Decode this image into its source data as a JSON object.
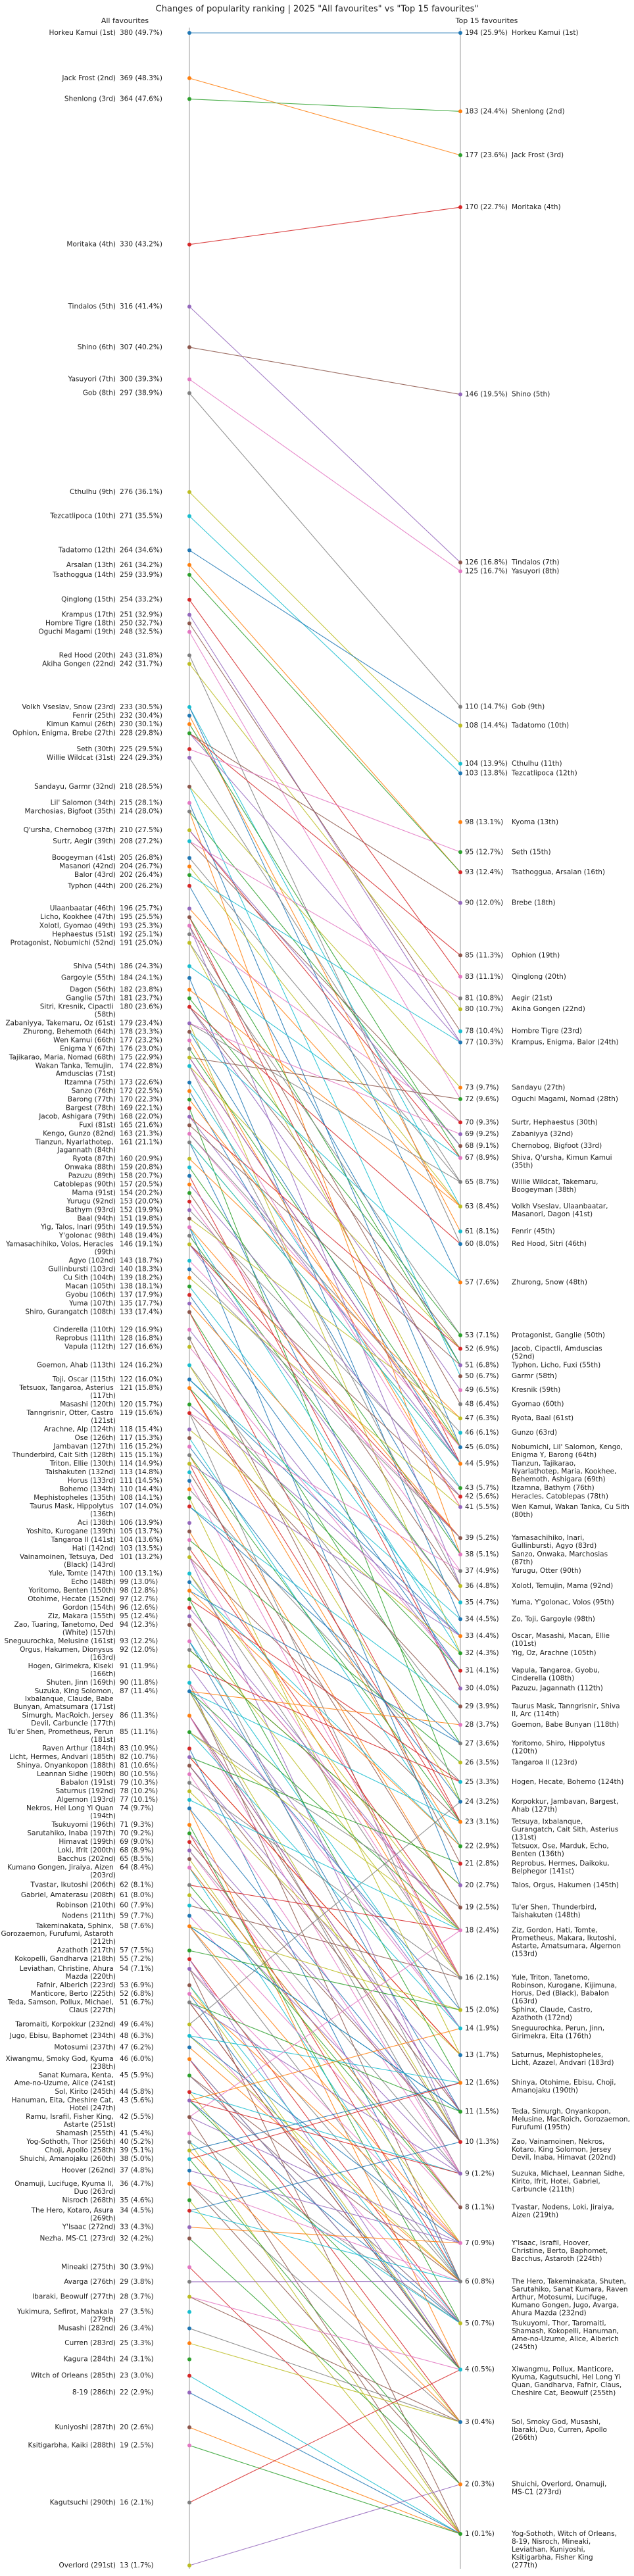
{
  "chart_data": {
    "type": "slope",
    "title": "Changes of popularity ranking | 2025 \"All favourites\" vs \"Top 15 favourites\"",
    "scale": "sqrt",
    "colors": [
      "#1f77b4",
      "#ff7f0e",
      "#2ca02c",
      "#d62728",
      "#9467bd",
      "#8c564b",
      "#e377c2",
      "#7f7f7f",
      "#bcbd22",
      "#17becf"
    ],
    "left": {
      "title": "All favourites",
      "ylim": [
        13,
        380
      ],
      "labels": [
        "Horkeu Kamui (1st)",
        "Jack Frost (2nd)",
        "Shenlong (3rd)",
        "Moritaka (4th)",
        "Tindalos (5th)",
        "Shino (6th)",
        "Yasuyori (7th)",
        "Gob (8th)",
        "Cthulhu (9th)",
        "Tezcatlipoca (10th)",
        "Tadatomo (12th)",
        "Arsalan (13th)",
        "Tsathoggua (14th)",
        "Qinglong (15th)",
        "Krampus (17th)",
        "Hombre Tigre (18th)",
        "Oguchi Magami (19th)",
        "Red Hood (20th)",
        "Akiha Gongen (22nd)",
        "Volkh Vseslav, Snow (23rd)",
        "Fenrir (25th)",
        "Kimun Kamui (26th)",
        "Ophion, Enigma, Brebe (27th)",
        "Seth (30th)",
        "Willie Wildcat (31st)",
        "Sandayu, Garmr (32nd)",
        "Lil' Salomon (34th)",
        "Marchosias, Bigfoot (35th)",
        "Q'ursha, Chernobog (37th)",
        "Surtr, Aegir (39th)",
        "Boogeyman (41st)",
        "Masanori (42nd)",
        "Balor (43rd)",
        "Typhon (44th)",
        "Ulaanbaatar (46th)",
        "Licho, Kookhee (47th)",
        "Xolotl, Gyomao (49th)",
        "Hephaestus (51st)",
        "Protagonist, Nobumichi (52nd)",
        "Shiva (54th)",
        "Gargoyle (55th)",
        "Dagon (56th)",
        "Ganglie (57th)",
        "Sitri, Kresnik, Cipactli (58th)",
        "Zabaniyya, Takemaru, Oz (61st)",
        "Zhurong, Behemoth (64th)",
        "Wen Kamui (66th)",
        "Enigma Y (67th)",
        "Tajikarao, Maria, Nomad (68th)",
        "Wakan Tanka, Temujin, Amduscias (71st)",
        "Itzamna (75th)",
        "Sanzo (76th)",
        "Barong (77th)",
        "Bargest (78th)",
        "Jacob, Ashigara (79th)",
        "Fuxi (81st)",
        "Kengo, Gunzo (82nd)",
        "Tianzun, Nyarlathotep, Jagannath (84th)",
        "Ryota (87th)",
        "Onwaka (88th)",
        "Pazuzu (89th)",
        "Catoblepas (90th)",
        "Mama (91st)",
        "Yurugu (92nd)",
        "Bathym (93rd)",
        "Baal (94th)",
        "Yig, Talos, Inari (95th)",
        "Y'golonac (98th)",
        "Yamasachihiko, Volos, Heracles (99th)",
        "Agyo (102nd)",
        "Gullinbursti (103rd)",
        "Cu Sith (104th)",
        "Macan (105th)",
        "Gyobu (106th)",
        "Yuma (107th)",
        "Shiro, Gurangatch (108th)",
        "Cinderella (110th)",
        "Reprobus (111th)",
        "Vapula (112th)",
        "Goemon, Ahab (113th)",
        "Toji, Oscar (115th)",
        "Tetsuox, Tangaroa, Asterius (117th)",
        "Masashi (120th)",
        "Tanngrisnir, Otter, Castro (121st)",
        "Arachne, Alp (124th)",
        "Ose (126th)",
        "Jambavan (127th)",
        "Thunderbird, Cait Sith (128th)",
        "Triton, Ellie (130th)",
        "Taishakuten (132nd)",
        "Horus (133rd)",
        "Bohemo (134th)",
        "Mephistopheles (135th)",
        "Taurus Mask, Hippolytus (136th)",
        "Aci (138th)",
        "Yoshito, Kurogane (139th)",
        "Tangaroa II (141st)",
        "Hati (142nd)",
        "Vainamoinen, Tetsuya, Ded (Black) (143rd)",
        "Yule, Tomte (147th)",
        "Echo (148th)",
        "Yoritomo, Benten (150th)",
        "Otohime, Hecate (152nd)",
        "Gordon (154th)",
        "Ziz, Makara (155th)",
        "Zao, Tuaring, Tanetomo, Ded (White) (157th)",
        "Sneguurochka, Melusine (161st)",
        "Orgus, Hakumen, Dionysus (163rd)",
        "Hogen, Girimekra, Kiseki (166th)",
        "Shuten, Jinn (169th)",
        "Suzuka, King Solomon, Ixbalanque, Claude, Babe Bunyan, Amatsumara (171st)",
        "Simurgh, MacRoich, Jersey Devil, Carbuncle (177th)",
        "Tu'er Shen, Prometheus, Perun (181st)",
        "Raven Arthur (184th)",
        "Licht, Hermes, Andvari (185th)",
        "Shinya, Onyankopon (188th)",
        "Leannan Sidhe (190th)",
        "Babalon (191st)",
        "Saturnus (192nd)",
        "Algernon (193rd)",
        "Nekros, Hel Long Yi Quan (194th)",
        "Tsukuyomi (196th)",
        "Sarutahiko, Inaba (197th)",
        "Himavat (199th)",
        "Loki, Ifrit (200th)",
        "Bacchus (202nd)",
        "Kumano Gongen, Jiraiya, Aizen (203rd)",
        "Tvastar, Ikutoshi (206th)",
        "Gabriel, Amaterasu (208th)",
        "Robinson (210th)",
        "Nodens (211th)",
        "Takeminakata, Sphinx, Gorozaemon, Furufumi, Astaroth (212th)",
        "Azathoth (217th)",
        "Kokopelli, Gandharva (218th)",
        "Leviathan, Christine, Ahura Mazda (220th)",
        "Fafnir, Alberich (223rd)",
        "Manticore, Berto (225th)",
        "Teda, Samson, Pollux, Michael, Claus (227th)",
        "Taromaiti, Korpokkur (232nd)",
        "Jugo, Ebisu, Baphomet (234th)",
        "Motosumi (237th)",
        "Xiwangmu, Smoky God, Kyuma (238th)",
        "Sanat Kumara, Kenta, Ame-no-Uzume, Alice (241st)",
        "Sol, Kirito (245th)",
        "Hanuman, Eita, Cheshire Cat, Hotei (247th)",
        "Ramu, Israfil, Fisher King, Astarte (251st)",
        "Shamash (255th)",
        "Yog-Sothoth, Thor (256th)",
        "Choji, Apollo (258th)",
        "Shuichi, Amanojaku (260th)",
        "Hoover (262nd)",
        "Onamuji, Lucifuge, Kyuma II, Duo (263rd)",
        "Nisroch (268th)",
        "The Hero, Kotaro, Asura (269th)",
        "Y'lsaac (272nd)",
        "Nezha, MS-C1 (273rd)",
        "Mineaki (275th)",
        "Avarga (276th)",
        "Ibaraki, Beowulf (277th)",
        "Yukimura, Sefirot, Mahakala (279th)",
        "Musashi (282nd)",
        "Curren (283rd)",
        "Kagura (284th)",
        "Witch of Orleans (285th)",
        "8-19 (286th)",
        "Kuniyoshi (287th)",
        "Ksitigarbha, Kaiki (288th)",
        "Kagutsuchi (290th)",
        "Overlord (291st)"
      ],
      "values": [
        380,
        369,
        364,
        330,
        316,
        307,
        300,
        297,
        276,
        271,
        264,
        261,
        259,
        254,
        251,
        250,
        248,
        243,
        242,
        233,
        232,
        230,
        228,
        225,
        224,
        218,
        215,
        214,
        210,
        208,
        205,
        204,
        202,
        200,
        196,
        195,
        193,
        192,
        191,
        186,
        184,
        182,
        181,
        180,
        179,
        178,
        177,
        176,
        175,
        174,
        173,
        172,
        170,
        169,
        168,
        165,
        163,
        161,
        160,
        159,
        158,
        157,
        154,
        153,
        152,
        151,
        149,
        148,
        146,
        143,
        140,
        139,
        138,
        137,
        135,
        133,
        129,
        128,
        127,
        124,
        122,
        121,
        120,
        119,
        118,
        117,
        116,
        115,
        114,
        113,
        111,
        110,
        108,
        107,
        106,
        105,
        104,
        103,
        101,
        100,
        99,
        98,
        97,
        96,
        95,
        94,
        93,
        92,
        91,
        90,
        87,
        86,
        85,
        83,
        82,
        81,
        80,
        79,
        78,
        77,
        74,
        71,
        70,
        69,
        68,
        65,
        64,
        62,
        61,
        60,
        59,
        58,
        57,
        55,
        54,
        53,
        52,
        51,
        49,
        48,
        47,
        46,
        45,
        44,
        43,
        42,
        41,
        40,
        39,
        38,
        37,
        36,
        35,
        34,
        33,
        32,
        30,
        29,
        28,
        27,
        26,
        25,
        24,
        23,
        22,
        20,
        19,
        16,
        13
      ],
      "value_labels": [
        "380 (49.7%)",
        "369 (48.3%)",
        "364 (47.6%)",
        "330 (43.2%)",
        "316 (41.4%)",
        "307 (40.2%)",
        "300 (39.3%)",
        "297 (38.9%)",
        "276 (36.1%)",
        "271 (35.5%)",
        "264 (34.6%)",
        "261 (34.2%)",
        "259 (33.9%)",
        "254 (33.2%)",
        "251 (32.9%)",
        "250 (32.7%)",
        "248 (32.5%)",
        "243 (31.8%)",
        "242 (31.7%)",
        "233 (30.5%)",
        "232 (30.4%)",
        "230 (30.1%)",
        "228 (29.8%)",
        "225 (29.5%)",
        "224 (29.3%)",
        "218 (28.5%)",
        "215 (28.1%)",
        "214 (28.0%)",
        "210 (27.5%)",
        "208 (27.2%)",
        "205 (26.8%)",
        "204 (26.7%)",
        "202 (26.4%)",
        "200 (26.2%)",
        "196 (25.7%)",
        "195 (25.5%)",
        "193 (25.3%)",
        "192 (25.1%)",
        "191 (25.0%)",
        "186 (24.3%)",
        "184 (24.1%)",
        "182 (23.8%)",
        "181 (23.7%)",
        "180 (23.6%)",
        "179 (23.4%)",
        "178 (23.3%)",
        "177 (23.2%)",
        "176 (23.0%)",
        "175 (22.9%)",
        "174 (22.8%)",
        "173 (22.6%)",
        "172 (22.5%)",
        "170 (22.3%)",
        "169 (22.1%)",
        "168 (22.0%)",
        "165 (21.6%)",
        "163 (21.3%)",
        "161 (21.1%)",
        "160 (20.9%)",
        "159 (20.8%)",
        "158 (20.7%)",
        "157 (20.5%)",
        "154 (20.2%)",
        "153 (20.0%)",
        "152 (19.9%)",
        "151 (19.8%)",
        "149 (19.5%)",
        "148 (19.4%)",
        "146 (19.1%)",
        "143 (18.7%)",
        "140 (18.3%)",
        "139 (18.2%)",
        "138 (18.1%)",
        "137 (17.9%)",
        "135 (17.7%)",
        "133 (17.4%)",
        "129 (16.9%)",
        "128 (16.8%)",
        "127 (16.6%)",
        "124 (16.2%)",
        "122 (16.0%)",
        "121 (15.8%)",
        "120 (15.7%)",
        "119 (15.6%)",
        "118 (15.4%)",
        "117 (15.3%)",
        "116 (15.2%)",
        "115 (15.1%)",
        "114 (14.9%)",
        "113 (14.8%)",
        "111 (14.5%)",
        "110 (14.4%)",
        "108 (14.1%)",
        "107 (14.0%)",
        "106 (13.9%)",
        "105 (13.7%)",
        "104 (13.6%)",
        "103 (13.5%)",
        "101 (13.2%)",
        "100 (13.1%)",
        "99 (13.0%)",
        "98 (12.8%)",
        "97 (12.7%)",
        "96 (12.6%)",
        "95 (12.4%)",
        "94 (12.3%)",
        "93 (12.2%)",
        "92 (12.0%)",
        "91 (11.9%)",
        "90 (11.8%)",
        "87 (11.4%)",
        "86 (11.3%)",
        "85 (11.1%)",
        "83 (10.9%)",
        "82 (10.7%)",
        "81 (10.6%)",
        "80 (10.5%)",
        "79 (10.3%)",
        "78 (10.2%)",
        "77 (10.1%)",
        "74 (9.7%)",
        "71 (9.3%)",
        "70 (9.2%)",
        "69 (9.0%)",
        "68 (8.9%)",
        "65 (8.5%)",
        "64 (8.4%)",
        "62 (8.1%)",
        "61 (8.0%)",
        "60 (7.9%)",
        "59 (7.7%)",
        "58 (7.6%)",
        "57 (7.5%)",
        "55 (7.2%)",
        "54 (7.1%)",
        "53 (6.9%)",
        "52 (6.8%)",
        "51 (6.7%)",
        "49 (6.4%)",
        "48 (6.3%)",
        "47 (6.2%)",
        "46 (6.0%)",
        "45 (5.9%)",
        "44 (5.8%)",
        "43 (5.6%)",
        "42 (5.5%)",
        "41 (5.4%)",
        "40 (5.2%)",
        "39 (5.1%)",
        "38 (5.0%)",
        "37 (4.8%)",
        "36 (4.7%)",
        "35 (4.6%)",
        "34 (4.5%)",
        "33 (4.3%)",
        "32 (4.2%)",
        "30 (3.9%)",
        "29 (3.8%)",
        "28 (3.7%)",
        "27 (3.5%)",
        "26 (3.4%)",
        "25 (3.3%)",
        "24 (3.1%)",
        "23 (3.0%)",
        "22 (2.9%)",
        "20 (2.6%)",
        "19 (2.5%)",
        "16 (2.1%)",
        "13 (1.7%)"
      ]
    },
    "right": {
      "title": "Top 15 favourites",
      "ylim": [
        1,
        194
      ],
      "labels": [
        "Horkeu Kamui (1st)",
        "Shenlong (2nd)",
        "Jack Frost (3rd)",
        "Moritaka (4th)",
        "Shino (5th)",
        "Tindalos (7th)",
        "Yasuyori (8th)",
        "Gob (9th)",
        "Tadatomo (10th)",
        "Cthulhu (11th)",
        "Tezcatlipoca (12th)",
        "Kyoma (13th)",
        "Seth (15th)",
        "Tsathoggua, Arsalan (16th)",
        "Brebe (18th)",
        "Ophion (19th)",
        "Qinglong (20th)",
        "Aegir (21st)",
        "Akiha Gongen (22nd)",
        "Hombre Tigre (23rd)",
        "Krampus, Enigma, Balor (24th)",
        "Sandayu (27th)",
        "Oguchi Magami, Nomad (28th)",
        "Surtr, Hephaestus (30th)",
        "Zabaniyya (32nd)",
        "Chernobog, Bigfoot (33rd)",
        "Shiva, Q'ursha, Kimun Kamui (35th)",
        "Willie Wildcat, Takemaru, Boogeyman (38th)",
        "Volkh Vseslav, Ulaanbaatar, Masanori, Dagon (41st)",
        "Fenrir (45th)",
        "Red Hood, Sitri (46th)",
        "Zhurong, Snow (48th)",
        "Protagonist, Ganglie (50th)",
        "Jacob, Cipactli, Amduscias (52nd)",
        "Typhon, Licho, Fuxi (55th)",
        "Garmr (58th)",
        "Kresnik (59th)",
        "Gyomao (60th)",
        "Ryota, Baal (61st)",
        "Gunzo (63rd)",
        "Nobumichi, Lil' Salomon, Kengo, Enigma Y, Barong (64th)",
        "Tianzun, Tajikarao, Nyarlathotep, Maria, Kookhee, Behemoth, Ashigara (69th)",
        "Itzamna, Bathym (76th)",
        "Heracles, Catoblepas (78th)",
        "Wen Kamui, Wakan Tanka, Cu Sith (80th)",
        "Yamasachihiko, Inari, Gullinbursti, Agyo (83rd)",
        "Sanzo, Onwaka, Marchosias (87th)",
        "Yurugu, Otter (90th)",
        "Xolotl, Temujin, Mama (92nd)",
        "Yuma, Y'golonac, Volos (95th)",
        "Zo, Toji, Gargoyle (98th)",
        "Oscar, Masashi, Macan, Ellie (101st)",
        "Yig, Oz, Arachne (105th)",
        "Vapula, Tangaroa, Gyobu, Cinderella (108th)",
        "Pazuzu, Jagannath (112th)",
        "Taurus Mask, Tanngrisnir, Shiva II, Arc (114th)",
        "Goemon, Babe Bunyan (118th)",
        "Yoritomo, Shiro, Hippolytus (120th)",
        "Tangaroa II (123rd)",
        "Hogen, Hecate, Bohemo (124th)",
        "Korpokkur, Jambavan, Bargest, Ahab (127th)",
        "Tetsuya, Ixbalanque, Gurangatch, Cait Sith, Asterius (131st)",
        "Tetsuox, Ose, Marduk, Echo, Benten (136th)",
        "Reprobus, Hermes, Daikoku, Belphegor (141st)",
        "Talos, Orgus, Hakumen (145th)",
        "Tu'er Shen, Thunderbird, Taishakuten (148th)",
        "Ziz, Gordon, Hati, Tomte, Prometheus, Makara, Ikutoshi, Astarte, Amatsumara, Algernon (153rd)",
        "Yule, Triton, Tanetomo, Robinson, Kurogane, Kijimuna, Horus, Ded (Black), Babalon (163rd)",
        "Sphinx, Claude, Castro, Azathoth (172nd)",
        "Sneguurochka, Perun, Jinn, Girimekra, Eita (176th)",
        "Saturnus, Mephistopheles, Licht, Azazel, Andvari (183rd)",
        "Shinya, Otohime, Ebisu, Choji, Amanojaku (190th)",
        "Teda, Simurgh, Onyankopon, Melusine, MacRoich, Gorozaemon, Furufumi (195th)",
        "Zao, Vainamoinen, Nekros, Kotaro, King Solomon, Jersey Devil, Inaba, Himavat (202nd)",
        "Suzuka, Michael, Leannan Sidhe, Kirito, Ifrit, Hotei, Gabriel, Carbuncle (211th)",
        "Tvastar, Nodens, Loki, Jiraiya, Aizen (219th)",
        "Y'lsaac, Israfil, Hoover, Christine, Berto, Baphomet, Bacchus, Astaroth (224th)",
        "The Hero, Takeminakata, Shuten, Sarutahiko, Sanat Kumara, Raven Arthur, Motosumi, Lucifuge, Kumano Gongen, Jugo, Avarga, Ahura Mazda (232nd)",
        "Tsukuyomi, Thor, Taromaiti, Shamash, Kokopelli, Hanuman, Ame-no-Uzume, Alice, Alberich (245th)",
        "Xiwangmu, Pollux, Manticore, Kyuma, Kagutsuchi, Hel Long Yi Quan, Gandharva, Fafnir, Claus, Cheshire Cat, Beowulf (255th)",
        "Sol, Smoky God, Musashi, Ibaraki, Duo, Curren, Apollo (266th)",
        "Shuichi, Overlord, Onamuji, MS-C1 (273rd)",
        "Yog-Sothoth, Witch of Orleans, 8-19, Nisroch, Mineaki, Leviathan, Kuniyoshi, Ksitigarbha, Fisher King (277th)"
      ],
      "values": [
        194,
        183,
        177,
        170,
        146,
        126,
        125,
        110,
        108,
        104,
        103,
        98,
        95,
        93,
        90,
        85,
        83,
        81,
        80,
        78,
        77,
        73,
        72,
        70,
        69,
        68,
        67,
        65,
        63,
        61,
        60,
        57,
        53,
        52,
        51,
        50,
        49,
        48,
        47,
        46,
        45,
        44,
        43,
        42,
        41,
        39,
        38,
        37,
        36,
        35,
        34,
        33,
        32,
        31,
        30,
        29,
        28,
        27,
        26,
        25,
        24,
        23,
        22,
        21,
        20,
        19,
        18,
        16,
        15,
        14,
        13,
        12,
        11,
        10,
        9,
        8,
        7,
        6,
        5,
        4,
        3,
        2,
        1
      ],
      "value_labels": [
        "194 (25.9%)",
        "183 (24.4%)",
        "177 (23.6%)",
        "170 (22.7%)",
        "146 (19.5%)",
        "126 (16.8%)",
        "125 (16.7%)",
        "110 (14.7%)",
        "108 (14.4%)",
        "104 (13.9%)",
        "103 (13.8%)",
        "98 (13.1%)",
        "95 (12.7%)",
        "93 (12.4%)",
        "90 (12.0%)",
        "85 (11.3%)",
        "83 (11.1%)",
        "81 (10.8%)",
        "80 (10.7%)",
        "78 (10.4%)",
        "77 (10.3%)",
        "73 (9.7%)",
        "72 (9.6%)",
        "70 (9.3%)",
        "69 (9.2%)",
        "68 (9.1%)",
        "67 (8.9%)",
        "65 (8.7%)",
        "63 (8.4%)",
        "61 (8.1%)",
        "60 (8.0%)",
        "57 (7.6%)",
        "53 (7.1%)",
        "52 (6.9%)",
        "51 (6.8%)",
        "50 (6.7%)",
        "49 (6.5%)",
        "48 (6.4%)",
        "47 (6.3%)",
        "46 (6.1%)",
        "45 (6.0%)",
        "44 (5.9%)",
        "43 (5.7%)",
        "42 (5.6%)",
        "41 (5.5%)",
        "39 (5.2%)",
        "38 (5.1%)",
        "37 (4.9%)",
        "36 (4.8%)",
        "35 (4.7%)",
        "34 (4.5%)",
        "33 (4.4%)",
        "32 (4.3%)",
        "31 (4.1%)",
        "30 (4.0%)",
        "29 (3.9%)",
        "28 (3.7%)",
        "27 (3.6%)",
        "26 (3.5%)",
        "25 (3.3%)",
        "24 (3.2%)",
        "23 (3.1%)",
        "22 (2.9%)",
        "21 (2.8%)",
        "20 (2.7%)",
        "19 (2.5%)",
        "18 (2.4%)",
        "16 (2.1%)",
        "15 (2.0%)",
        "14 (1.9%)",
        "13 (1.7%)",
        "12 (1.6%)",
        "11 (1.5%)",
        "10 (1.3%)",
        "9 (1.2%)",
        "8 (1.1%)",
        "7 (0.9%)",
        "6 (0.8%)",
        "5 (0.7%)",
        "4 (0.5%)",
        "3 (0.4%)",
        "2 (0.3%)",
        "1 (0.1%)"
      ]
    }
  }
}
